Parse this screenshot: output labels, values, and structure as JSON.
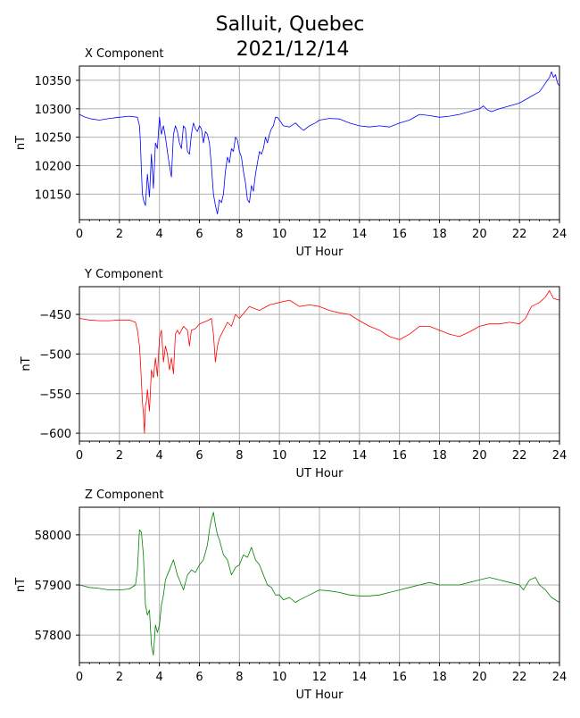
{
  "title_line1": "Salluit, Quebec",
  "title_line2": "2021/12/14",
  "chart_data": [
    {
      "type": "line",
      "title": "X Component",
      "xlabel": "UT Hour",
      "ylabel": "nT",
      "xlim": [
        0,
        24
      ],
      "ylim": [
        10105,
        10375
      ],
      "xticks": [
        0,
        2,
        4,
        6,
        8,
        10,
        12,
        14,
        16,
        18,
        20,
        22,
        24
      ],
      "yticks": [
        10150,
        10200,
        10250,
        10300,
        10350
      ],
      "grid": true,
      "color": "#0000ff",
      "series": [
        {
          "x": [
            0,
            0.3,
            0.6,
            1,
            1.5,
            2,
            2.5,
            2.9,
            3.0,
            3.05,
            3.1,
            3.15,
            3.2,
            3.3,
            3.4,
            3.5,
            3.6,
            3.7,
            3.8,
            3.9,
            4.0,
            4.1,
            4.2,
            4.3,
            4.4,
            4.5,
            4.6,
            4.7,
            4.8,
            4.9,
            5.0,
            5.1,
            5.2,
            5.3,
            5.4,
            5.5,
            5.6,
            5.7,
            5.8,
            5.9,
            6.0,
            6.1,
            6.2,
            6.3,
            6.4,
            6.5,
            6.6,
            6.7,
            6.8,
            6.9,
            7.0,
            7.1,
            7.2,
            7.3,
            7.4,
            7.5,
            7.6,
            7.7,
            7.8,
            7.9,
            8.0,
            8.1,
            8.2,
            8.3,
            8.4,
            8.5,
            8.6,
            8.7,
            8.8,
            8.9,
            9.0,
            9.1,
            9.2,
            9.3,
            9.4,
            9.5,
            9.6,
            9.7,
            9.8,
            9.9,
            10.0,
            10.2,
            10.5,
            10.8,
            11.0,
            11.2,
            11.5,
            11.8,
            12.0,
            12.5,
            13.0,
            13.5,
            14.0,
            14.5,
            15.0,
            15.5,
            16.0,
            16.5,
            17.0,
            17.5,
            18.0,
            18.5,
            19.0,
            19.5,
            20.0,
            20.2,
            20.4,
            20.6,
            21.0,
            21.5,
            22.0,
            22.5,
            23.0,
            23.2,
            23.4,
            23.5,
            23.6,
            23.7,
            23.8,
            23.9,
            24.0
          ],
          "y": [
            10290,
            10285,
            10282,
            10280,
            10283,
            10285,
            10287,
            10285,
            10270,
            10240,
            10190,
            10150,
            10140,
            10130,
            10185,
            10145,
            10220,
            10160,
            10240,
            10230,
            10285,
            10255,
            10270,
            10250,
            10225,
            10200,
            10180,
            10255,
            10270,
            10260,
            10240,
            10230,
            10270,
            10265,
            10225,
            10220,
            10255,
            10275,
            10265,
            10260,
            10270,
            10265,
            10240,
            10260,
            10255,
            10240,
            10200,
            10150,
            10130,
            10115,
            10140,
            10135,
            10150,
            10190,
            10215,
            10205,
            10230,
            10225,
            10250,
            10245,
            10225,
            10215,
            10190,
            10170,
            10140,
            10135,
            10165,
            10155,
            10185,
            10205,
            10225,
            10220,
            10230,
            10250,
            10240,
            10255,
            10265,
            10270,
            10285,
            10285,
            10280,
            10270,
            10268,
            10275,
            10268,
            10262,
            10270,
            10275,
            10280,
            10283,
            10282,
            10275,
            10270,
            10268,
            10270,
            10268,
            10275,
            10280,
            10290,
            10288,
            10285,
            10287,
            10290,
            10295,
            10300,
            10305,
            10298,
            10295,
            10300,
            10305,
            10310,
            10320,
            10330,
            10340,
            10350,
            10355,
            10365,
            10355,
            10360,
            10345,
            10340
          ]
        }
      ]
    },
    {
      "type": "line",
      "title": "Y Component",
      "xlabel": "UT Hour",
      "ylabel": "nT",
      "xlim": [
        0,
        24
      ],
      "ylim": [
        -610,
        -415
      ],
      "xticks": [
        0,
        2,
        4,
        6,
        8,
        10,
        12,
        14,
        16,
        18,
        20,
        22,
        24
      ],
      "yticks": [
        -600,
        -550,
        -500,
        -450
      ],
      "grid": true,
      "color": "#ff0000",
      "series": [
        {
          "x": [
            0,
            0.5,
            1,
            1.5,
            2,
            2.5,
            2.8,
            2.9,
            3.0,
            3.05,
            3.1,
            3.15,
            3.2,
            3.25,
            3.3,
            3.35,
            3.4,
            3.5,
            3.6,
            3.7,
            3.8,
            3.9,
            4.0,
            4.1,
            4.2,
            4.3,
            4.4,
            4.5,
            4.6,
            4.7,
            4.8,
            4.9,
            5.0,
            5.2,
            5.4,
            5.5,
            5.6,
            5.8,
            6.0,
            6.2,
            6.4,
            6.6,
            6.7,
            6.8,
            6.9,
            7.0,
            7.2,
            7.4,
            7.6,
            7.8,
            8.0,
            8.5,
            9.0,
            9.5,
            10.0,
            10.5,
            11.0,
            11.5,
            12.0,
            12.5,
            13.0,
            13.5,
            14.0,
            14.5,
            15.0,
            15.5,
            16.0,
            16.5,
            17.0,
            17.5,
            18.0,
            18.5,
            19.0,
            19.5,
            20.0,
            20.5,
            21.0,
            21.5,
            22.0,
            22.3,
            22.6,
            23.0,
            23.3,
            23.5,
            23.7,
            24.0
          ],
          "y": [
            -455,
            -457,
            -458,
            -458,
            -457,
            -457,
            -460,
            -470,
            -490,
            -510,
            -535,
            -560,
            -575,
            -600,
            -565,
            -560,
            -545,
            -572,
            -520,
            -530,
            -505,
            -528,
            -480,
            -470,
            -510,
            -490,
            -500,
            -520,
            -505,
            -525,
            -475,
            -470,
            -475,
            -465,
            -470,
            -490,
            -470,
            -468,
            -462,
            -460,
            -458,
            -455,
            -475,
            -510,
            -490,
            -480,
            -470,
            -460,
            -465,
            -450,
            -455,
            -440,
            -445,
            -438,
            -435,
            -432,
            -440,
            -438,
            -440,
            -445,
            -448,
            -450,
            -458,
            -465,
            -470,
            -478,
            -482,
            -475,
            -465,
            -465,
            -470,
            -475,
            -478,
            -472,
            -465,
            -462,
            -462,
            -460,
            -462,
            -455,
            -440,
            -435,
            -428,
            -420,
            -430,
            -432
          ]
        }
      ]
    },
    {
      "type": "line",
      "title": "Z Component",
      "xlabel": "UT Hour",
      "ylabel": "nT",
      "xlim": [
        0,
        24
      ],
      "ylim": [
        57745,
        58055
      ],
      "xticks": [
        0,
        2,
        4,
        6,
        8,
        10,
        12,
        14,
        16,
        18,
        20,
        22,
        24
      ],
      "yticks": [
        57800,
        57900,
        58000
      ],
      "grid": true,
      "color": "#008000",
      "series": [
        {
          "x": [
            0,
            0.5,
            1,
            1.5,
            2,
            2.5,
            2.8,
            2.9,
            3.0,
            3.1,
            3.2,
            3.3,
            3.4,
            3.5,
            3.6,
            3.7,
            3.8,
            3.9,
            4.0,
            4.1,
            4.2,
            4.3,
            4.4,
            4.5,
            4.6,
            4.7,
            4.8,
            4.9,
            5.0,
            5.2,
            5.4,
            5.6,
            5.8,
            6.0,
            6.2,
            6.4,
            6.5,
            6.6,
            6.7,
            6.8,
            6.9,
            7.0,
            7.2,
            7.4,
            7.6,
            7.8,
            8.0,
            8.2,
            8.4,
            8.6,
            8.8,
            9.0,
            9.2,
            9.4,
            9.6,
            9.8,
            10.0,
            10.2,
            10.5,
            10.8,
            11.0,
            11.5,
            12.0,
            12.5,
            13.0,
            13.5,
            14.0,
            14.5,
            15.0,
            15.5,
            16.0,
            16.5,
            17.0,
            17.5,
            18.0,
            18.5,
            19.0,
            19.5,
            20.0,
            20.5,
            21.0,
            21.5,
            22.0,
            22.2,
            22.5,
            22.8,
            23.0,
            23.3,
            23.6,
            24.0
          ],
          "y": [
            57900,
            57895,
            57893,
            57890,
            57890,
            57892,
            57900,
            57930,
            58010,
            58005,
            57960,
            57860,
            57840,
            57850,
            57780,
            57760,
            57820,
            57805,
            57820,
            57860,
            57880,
            57910,
            57920,
            57930,
            57940,
            57950,
            57935,
            57920,
            57910,
            57890,
            57920,
            57930,
            57925,
            57940,
            57950,
            57980,
            58010,
            58030,
            58045,
            58020,
            58000,
            57990,
            57960,
            57950,
            57920,
            57935,
            57940,
            57960,
            57955,
            57975,
            57950,
            57940,
            57920,
            57900,
            57895,
            57880,
            57880,
            57870,
            57875,
            57865,
            57870,
            57880,
            57890,
            57888,
            57885,
            57880,
            57878,
            57878,
            57880,
            57885,
            57890,
            57895,
            57900,
            57905,
            57900,
            57900,
            57900,
            57905,
            57910,
            57915,
            57910,
            57905,
            57900,
            57890,
            57910,
            57915,
            57900,
            57890,
            57875,
            57865
          ]
        }
      ]
    }
  ]
}
